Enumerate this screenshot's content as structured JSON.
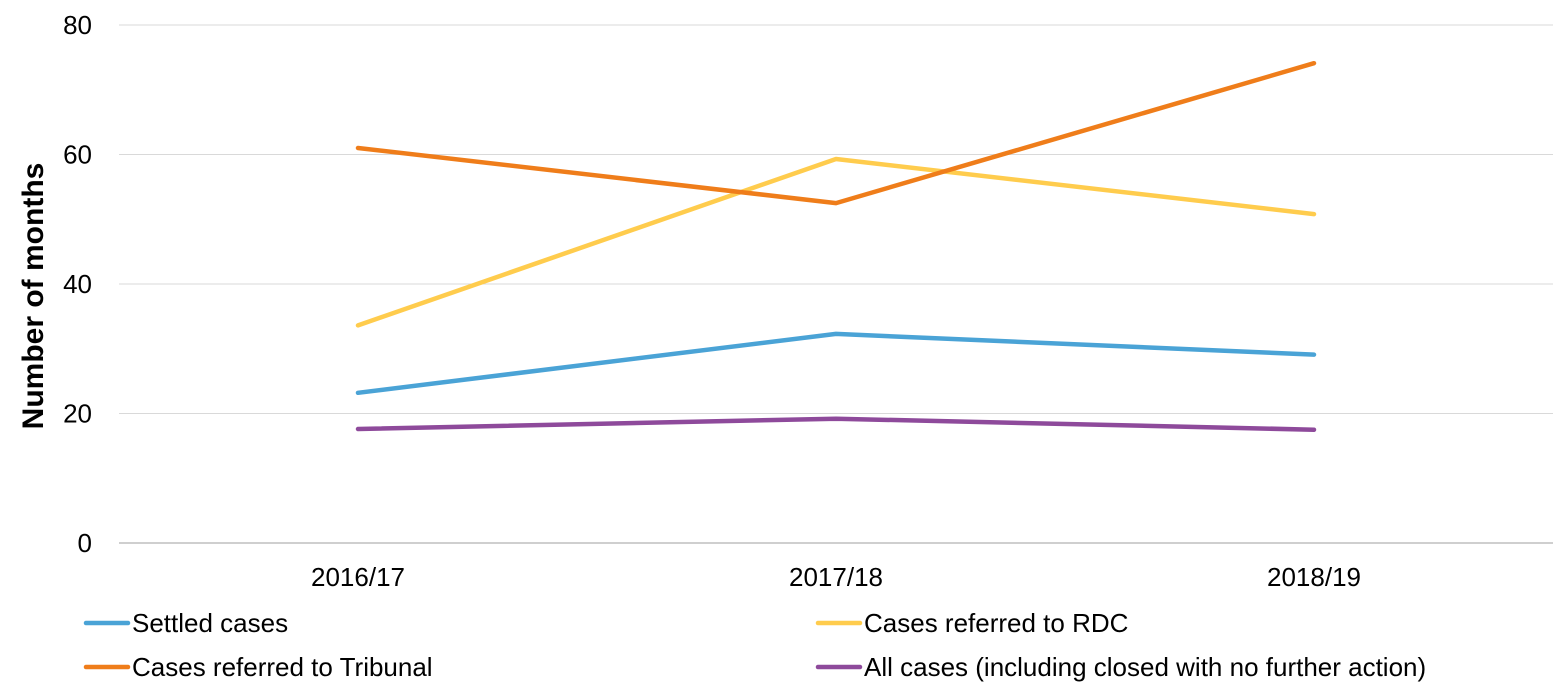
{
  "chart_data": {
    "type": "line",
    "title": "",
    "xlabel": "",
    "ylabel": "Number of months",
    "categories": [
      "2016/17",
      "2017/18",
      "2018/19"
    ],
    "ylim": [
      0,
      80
    ],
    "yticks": [
      0,
      20,
      40,
      60,
      80
    ],
    "grid": true,
    "legend_position": "bottom",
    "series": [
      {
        "name": "Settled cases",
        "color": "#4aa3d6",
        "values": [
          23.2,
          32.3,
          29.1
        ]
      },
      {
        "name": "Cases referred to RDC",
        "color": "#ffcc4d",
        "values": [
          33.6,
          59.3,
          50.8
        ]
      },
      {
        "name": "Cases referred to Tribunal",
        "color": "#ef7d1a",
        "values": [
          61.0,
          52.5,
          74.1
        ]
      },
      {
        "name": "All cases (including closed with no further action)",
        "color": "#8e4a9b",
        "values": [
          17.6,
          19.2,
          17.5
        ]
      }
    ]
  }
}
